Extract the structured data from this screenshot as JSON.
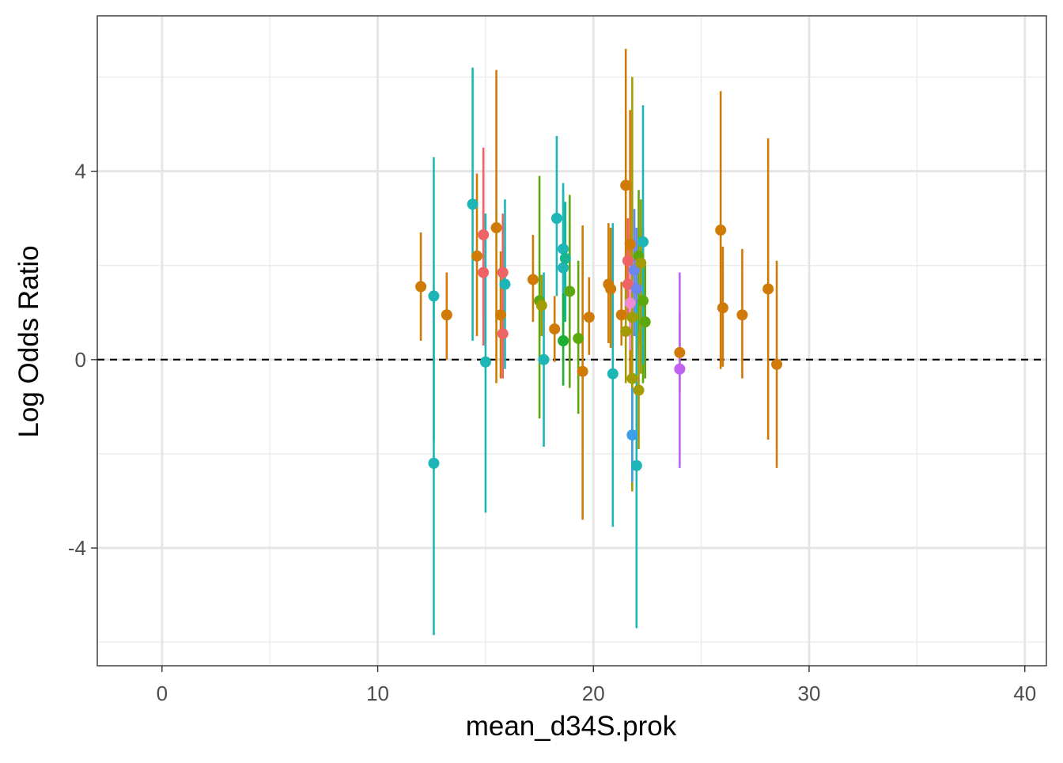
{
  "chart_data": {
    "type": "scatter",
    "subtype": "point-with-errorbars",
    "title": "",
    "xlabel": "mean_d34S.prok",
    "ylabel": "Log Odds Ratio",
    "xlim": [
      -3,
      41
    ],
    "ylim": [
      -6.5,
      7.3
    ],
    "x_major_ticks": [
      0,
      10,
      20,
      30,
      40
    ],
    "x_tick_labels": [
      "0",
      "10",
      "20",
      "30",
      "40"
    ],
    "x_minor_ticks": [
      5,
      15,
      25,
      35
    ],
    "y_major_ticks": [
      -4,
      0,
      4
    ],
    "y_tick_labels": [
      "-4",
      "0",
      "4"
    ],
    "y_minor_ticks": [
      -6,
      -2,
      2,
      6
    ],
    "reference_line": {
      "y": 0,
      "style": "dashed",
      "color": "#000000"
    },
    "grid": true,
    "legend": "none",
    "colors": {
      "orange": "#D07A08",
      "teal": "#1DB5B5",
      "red": "#EE6464",
      "olive": "#A39C06",
      "green": "#5DA80F",
      "bright_green": "#1EAE33",
      "sea_green": "#18B592",
      "blue": "#3E9EE8",
      "periwinkle": "#6C86EE",
      "purple": "#BF62F2",
      "pink": "#F08BCF"
    },
    "points": [
      {
        "x": 12.0,
        "y": 1.55,
        "lo": 0.4,
        "hi": 2.7,
        "color": "orange"
      },
      {
        "x": 12.6,
        "y": 1.35,
        "lo": -1.7,
        "hi": 4.3,
        "color": "teal"
      },
      {
        "x": 12.6,
        "y": -2.2,
        "lo": -5.85,
        "hi": 1.35,
        "color": "teal"
      },
      {
        "x": 13.2,
        "y": 0.95,
        "lo": 0.0,
        "hi": 1.85,
        "color": "orange"
      },
      {
        "x": 14.4,
        "y": 3.3,
        "lo": 0.4,
        "hi": 6.2,
        "color": "teal"
      },
      {
        "x": 14.6,
        "y": 2.2,
        "lo": 0.5,
        "hi": 3.95,
        "color": "orange"
      },
      {
        "x": 14.9,
        "y": 2.65,
        "lo": 0.9,
        "hi": 4.5,
        "color": "red"
      },
      {
        "x": 14.9,
        "y": 1.85,
        "lo": 0.3,
        "hi": 3.2,
        "color": "red"
      },
      {
        "x": 15.0,
        "y": -0.05,
        "lo": -3.25,
        "hi": 3.1,
        "color": "teal"
      },
      {
        "x": 15.5,
        "y": 2.8,
        "lo": -0.5,
        "hi": 6.15,
        "color": "orange"
      },
      {
        "x": 15.7,
        "y": 0.95,
        "lo": -0.4,
        "hi": 2.3,
        "color": "orange"
      },
      {
        "x": 15.8,
        "y": 1.85,
        "lo": 0.6,
        "hi": 3.1,
        "color": "red"
      },
      {
        "x": 15.8,
        "y": 0.55,
        "lo": -0.4,
        "hi": 1.5,
        "color": "red"
      },
      {
        "x": 15.9,
        "y": 1.6,
        "lo": -0.2,
        "hi": 3.4,
        "color": "teal"
      },
      {
        "x": 17.2,
        "y": 1.7,
        "lo": 0.8,
        "hi": 2.65,
        "color": "orange"
      },
      {
        "x": 17.5,
        "y": 1.25,
        "lo": -1.25,
        "hi": 3.9,
        "color": "green"
      },
      {
        "x": 17.6,
        "y": 1.15,
        "lo": 0.5,
        "hi": 1.8,
        "color": "olive"
      },
      {
        "x": 17.7,
        "y": 0.0,
        "lo": -1.85,
        "hi": 1.85,
        "color": "teal"
      },
      {
        "x": 18.2,
        "y": 0.65,
        "lo": -0.05,
        "hi": 1.35,
        "color": "orange"
      },
      {
        "x": 18.3,
        "y": 3.0,
        "lo": 1.35,
        "hi": 4.75,
        "color": "teal"
      },
      {
        "x": 18.6,
        "y": 2.35,
        "lo": 0.9,
        "hi": 3.75,
        "color": "teal"
      },
      {
        "x": 18.6,
        "y": 1.95,
        "lo": 0.3,
        "hi": 3.6,
        "color": "teal"
      },
      {
        "x": 18.6,
        "y": 0.4,
        "lo": -0.55,
        "hi": 1.4,
        "color": "bright_green"
      },
      {
        "x": 18.7,
        "y": 2.15,
        "lo": 0.8,
        "hi": 3.35,
        "color": "sea_green"
      },
      {
        "x": 18.9,
        "y": 1.45,
        "lo": -0.6,
        "hi": 3.5,
        "color": "green"
      },
      {
        "x": 19.3,
        "y": 0.45,
        "lo": -1.15,
        "hi": 2.1,
        "color": "green"
      },
      {
        "x": 19.5,
        "y": -0.25,
        "lo": -3.4,
        "hi": 2.85,
        "color": "orange"
      },
      {
        "x": 19.8,
        "y": 0.9,
        "lo": 0.1,
        "hi": 1.75,
        "color": "orange"
      },
      {
        "x": 20.7,
        "y": 1.6,
        "lo": 0.35,
        "hi": 2.9,
        "color": "orange"
      },
      {
        "x": 20.8,
        "y": 1.5,
        "lo": 0.25,
        "hi": 2.8,
        "color": "orange"
      },
      {
        "x": 20.9,
        "y": -0.3,
        "lo": -3.55,
        "hi": 2.9,
        "color": "teal"
      },
      {
        "x": 21.3,
        "y": 0.95,
        "lo": 0.3,
        "hi": 1.65,
        "color": "orange"
      },
      {
        "x": 21.5,
        "y": 3.7,
        "lo": 0.9,
        "hi": 6.6,
        "color": "orange"
      },
      {
        "x": 21.5,
        "y": 0.6,
        "lo": -0.5,
        "hi": 1.7,
        "color": "olive"
      },
      {
        "x": 21.6,
        "y": 2.1,
        "lo": 1.2,
        "hi": 3.0,
        "color": "red"
      },
      {
        "x": 21.6,
        "y": 1.6,
        "lo": 0.9,
        "hi": 2.4,
        "color": "red"
      },
      {
        "x": 21.7,
        "y": 2.45,
        "lo": -0.4,
        "hi": 5.3,
        "color": "orange"
      },
      {
        "x": 21.7,
        "y": 1.2,
        "lo": 0.2,
        "hi": 2.2,
        "color": "pink"
      },
      {
        "x": 21.8,
        "y": 0.9,
        "lo": -2.8,
        "hi": 6.0,
        "color": "olive"
      },
      {
        "x": 21.8,
        "y": -0.4,
        "lo": -1.5,
        "hi": 0.7,
        "color": "olive"
      },
      {
        "x": 21.8,
        "y": -1.6,
        "lo": -2.6,
        "hi": -0.6,
        "color": "blue"
      },
      {
        "x": 21.9,
        "y": 1.9,
        "lo": 0.5,
        "hi": 3.2,
        "color": "periwinkle"
      },
      {
        "x": 22.0,
        "y": 1.5,
        "lo": 0.2,
        "hi": 2.8,
        "color": "periwinkle"
      },
      {
        "x": 22.0,
        "y": -2.25,
        "lo": -5.7,
        "hi": 1.2,
        "color": "teal"
      },
      {
        "x": 22.1,
        "y": 2.2,
        "lo": 0.3,
        "hi": 3.6,
        "color": "green"
      },
      {
        "x": 22.1,
        "y": -0.65,
        "lo": -1.9,
        "hi": 0.6,
        "color": "olive"
      },
      {
        "x": 22.2,
        "y": 2.05,
        "lo": -0.3,
        "hi": 3.4,
        "color": "olive"
      },
      {
        "x": 22.3,
        "y": 1.25,
        "lo": -0.5,
        "hi": 2.8,
        "color": "green"
      },
      {
        "x": 22.3,
        "y": 2.5,
        "lo": -0.1,
        "hi": 5.4,
        "color": "teal"
      },
      {
        "x": 22.4,
        "y": 0.8,
        "lo": -0.4,
        "hi": 2.0,
        "color": "green"
      },
      {
        "x": 24.0,
        "y": 0.15,
        "lo": -0.7,
        "hi": 1.0,
        "color": "orange"
      },
      {
        "x": 24.0,
        "y": -0.2,
        "lo": -2.3,
        "hi": 1.85,
        "color": "purple"
      },
      {
        "x": 25.9,
        "y": 2.75,
        "lo": -0.2,
        "hi": 5.7,
        "color": "orange"
      },
      {
        "x": 26.0,
        "y": 1.1,
        "lo": -0.15,
        "hi": 2.4,
        "color": "orange"
      },
      {
        "x": 26.9,
        "y": 0.95,
        "lo": -0.4,
        "hi": 2.35,
        "color": "orange"
      },
      {
        "x": 28.1,
        "y": 1.5,
        "lo": -1.7,
        "hi": 4.7,
        "color": "orange"
      },
      {
        "x": 28.5,
        "y": -0.1,
        "lo": -2.3,
        "hi": 2.1,
        "color": "orange"
      }
    ]
  }
}
